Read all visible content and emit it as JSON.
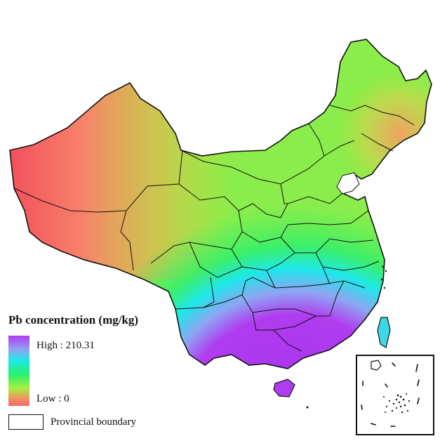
{
  "legend": {
    "title": "Pb concentration (mg/kg)",
    "high_label": "High : 210.31",
    "low_label": "Low : 0",
    "boundary_label": "Provincial boundary"
  },
  "colors": {
    "high": "#b03cf0",
    "mid_high": "#1ee8ea",
    "mid": "#28f070",
    "mid_low": "#a8f040",
    "low": "#f06a6a"
  },
  "icons": {
    "map": "china-lead-concentration-map",
    "inset": "south-china-sea-inset"
  }
}
